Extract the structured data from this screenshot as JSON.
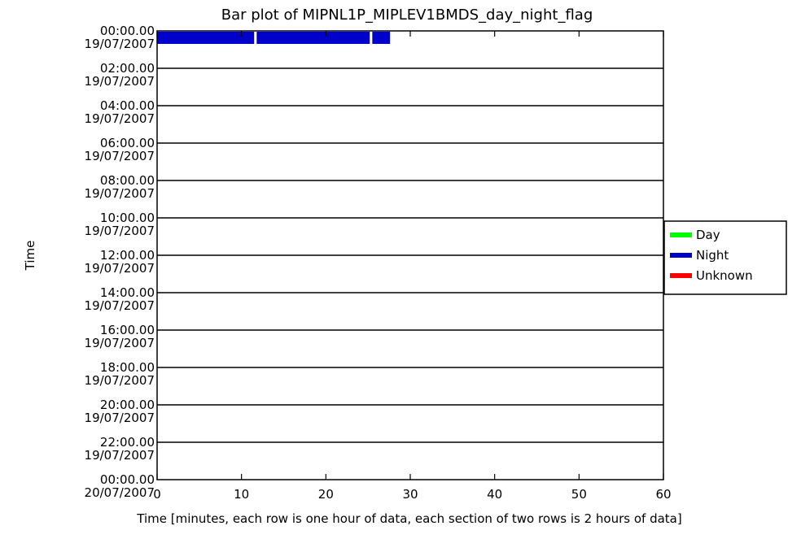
{
  "chart_data": {
    "type": "bar",
    "title": "Bar plot of  MIPNL1P_MIPLEV1BMDS_day_night_flag",
    "xlabel": "Time [minutes, each row is one hour of data, each section of two rows is 2 hours of data]",
    "ylabel": "Time",
    "xlim": [
      0,
      60
    ],
    "x_ticks": [
      "0",
      "10",
      "20",
      "30",
      "40",
      "50",
      "60"
    ],
    "y_ticks": [
      {
        "time": "00:00.00",
        "date": "19/07/2007"
      },
      {
        "time": "02:00.00",
        "date": "19/07/2007"
      },
      {
        "time": "04:00.00",
        "date": "19/07/2007"
      },
      {
        "time": "06:00.00",
        "date": "19/07/2007"
      },
      {
        "time": "08:00.00",
        "date": "19/07/2007"
      },
      {
        "time": "10:00.00",
        "date": "19/07/2007"
      },
      {
        "time": "12:00.00",
        "date": "19/07/2007"
      },
      {
        "time": "14:00.00",
        "date": "19/07/2007"
      },
      {
        "time": "16:00.00",
        "date": "19/07/2007"
      },
      {
        "time": "18:00.00",
        "date": "19/07/2007"
      },
      {
        "time": "20:00.00",
        "date": "19/07/2007"
      },
      {
        "time": "22:00.00",
        "date": "19/07/2007"
      },
      {
        "time": "00:00.00",
        "date": "20/07/2007"
      }
    ],
    "legend": {
      "placement": "right",
      "entries": [
        {
          "label": "Day",
          "color": "#00ff00"
        },
        {
          "label": "Night",
          "color": "#0000cc"
        },
        {
          "label": "Unknown",
          "color": "#ff0000"
        }
      ]
    },
    "segments": [
      {
        "row_start": "19/07/2007 00:00",
        "x_start": 0,
        "x_end": 11.5,
        "flag": "Night"
      },
      {
        "row_start": "19/07/2007 00:00",
        "x_start": 11.8,
        "x_end": 25.2,
        "flag": "Night"
      },
      {
        "row_start": "19/07/2007 00:00",
        "x_start": 25.5,
        "x_end": 27.6,
        "flag": "Night"
      }
    ]
  }
}
